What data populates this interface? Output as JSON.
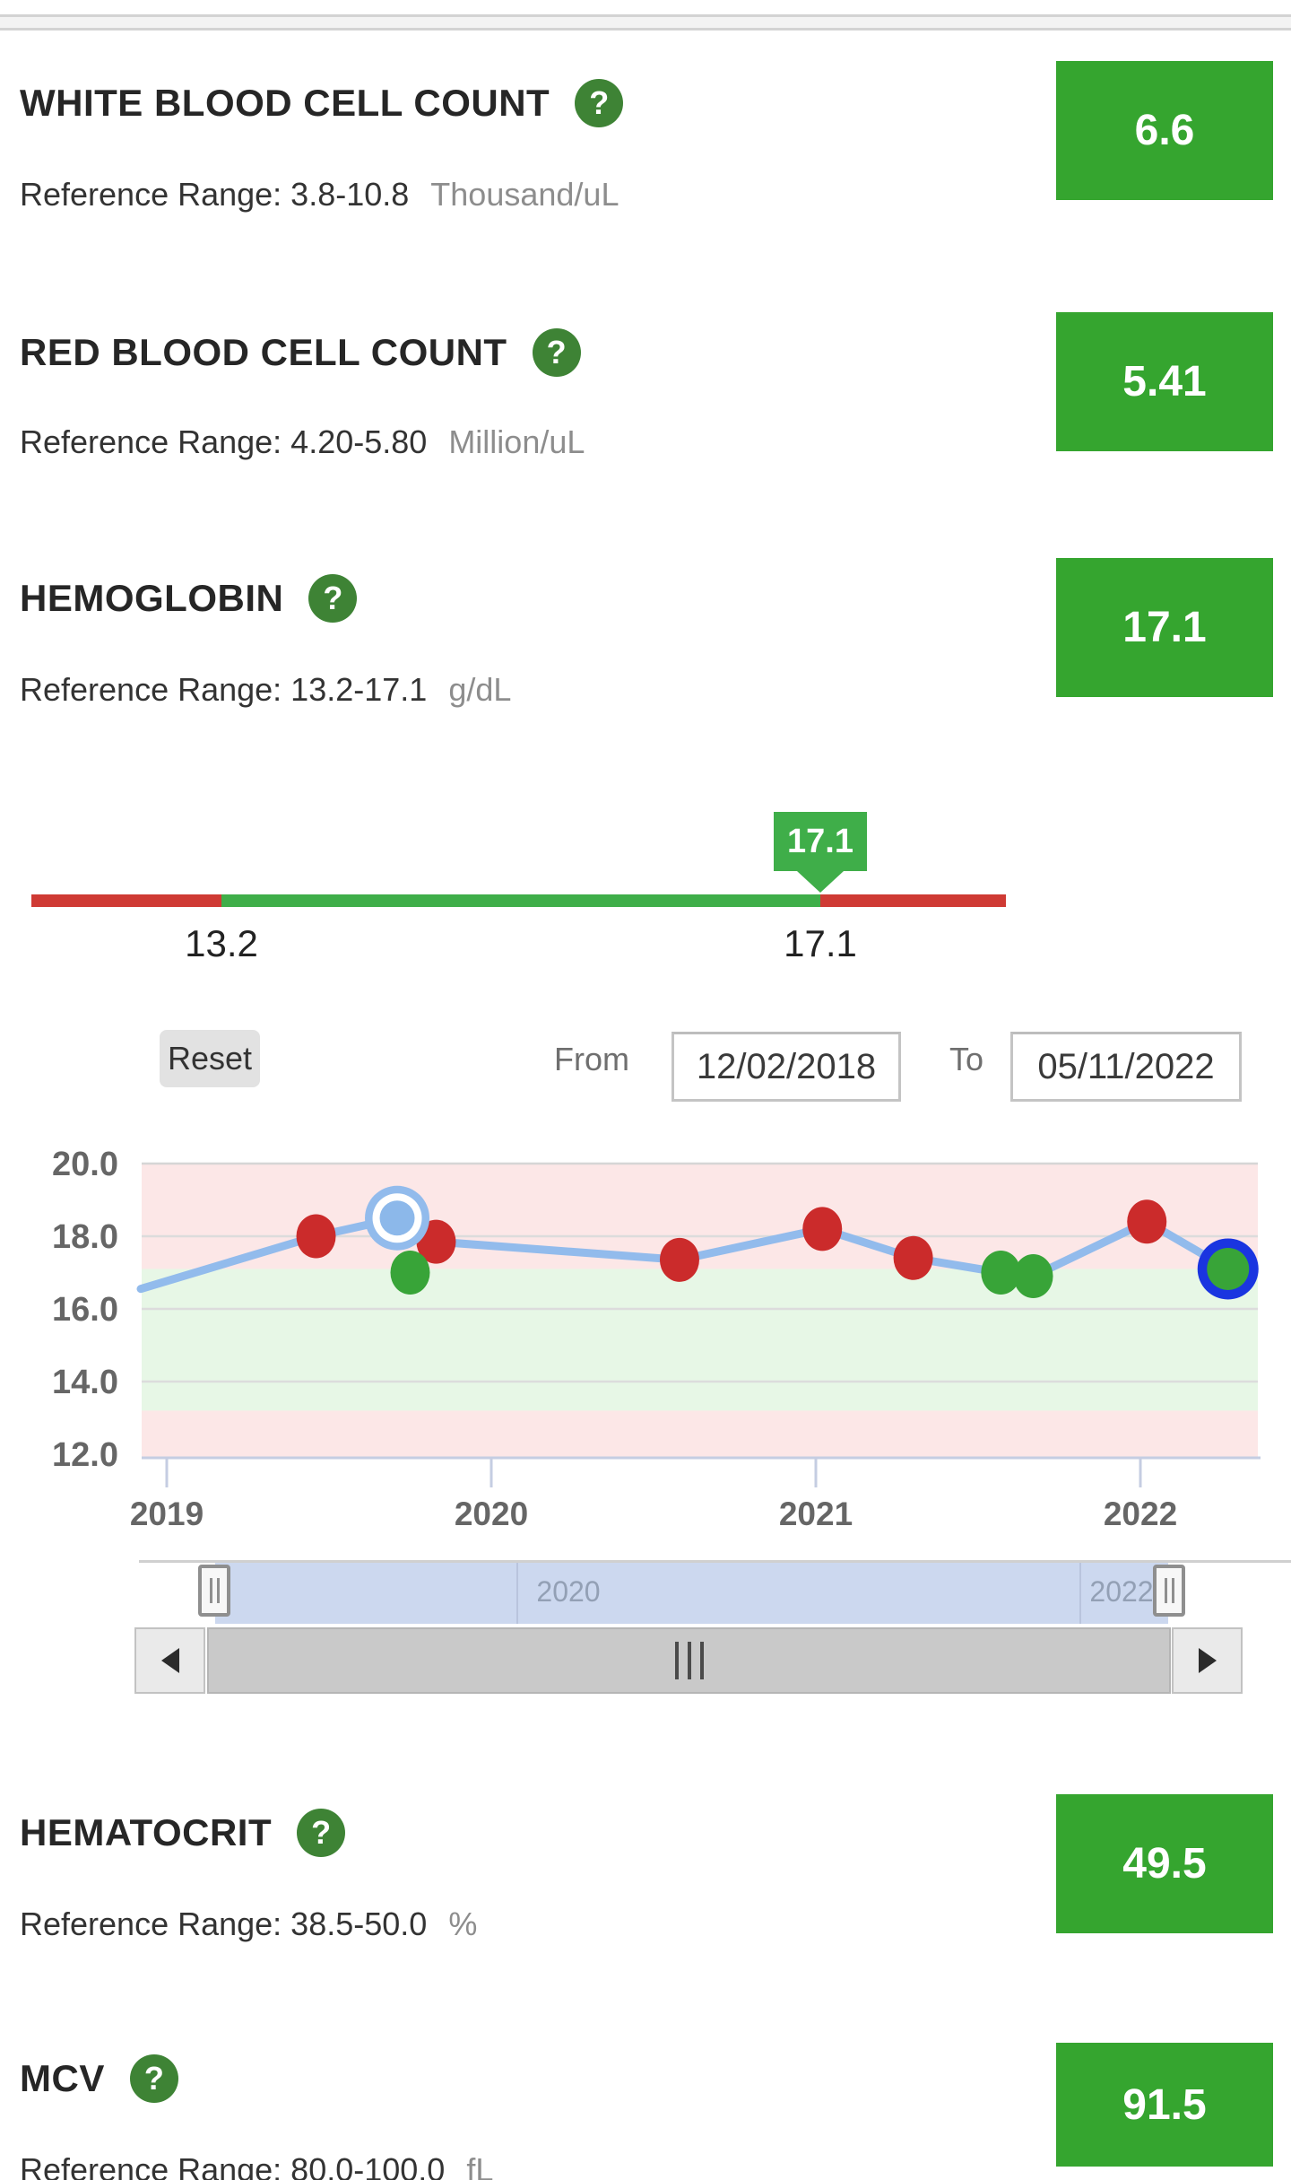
{
  "icons": {
    "help_glyph": "?",
    "scrollbar_left": "left-arrow",
    "scrollbar_right": "right-arrow"
  },
  "colors": {
    "result_value_bg": "#35a52f",
    "help_icon_bg": "#3e8335",
    "range_in": "#3fae49",
    "range_out": "#cf3a34",
    "flag_bg": "#3fae49"
  },
  "results": [
    {
      "title": "WHITE BLOOD CELL COUNT",
      "ref_label": "Reference Range: 3.8-10.8",
      "unit": "Thousand/uL",
      "value": "6.6"
    },
    {
      "title": "RED BLOOD CELL COUNT",
      "ref_label": "Reference Range: 4.20-5.80",
      "unit": "Million/uL",
      "value": "5.41"
    },
    {
      "title": "HEMOGLOBIN",
      "ref_label": "Reference Range: 13.2-17.1",
      "unit": "g/dL",
      "value": "17.1"
    },
    {
      "title": "HEMATOCRIT",
      "ref_label": "Reference Range: 38.5-50.0",
      "unit": "%",
      "value": "49.5"
    },
    {
      "title": "MCV",
      "ref_label": "Reference Range: 80.0-100.0",
      "unit": "fL",
      "value": "91.5"
    }
  ],
  "range_bar": {
    "min_label": "13.2",
    "max_label": "17.1",
    "marker_value": "17.1"
  },
  "toolbar": {
    "reset_label": "Reset",
    "from_label": "From",
    "from_value": "12/02/2018",
    "to_label": "To",
    "to_value": "05/11/2022"
  },
  "chart_data": {
    "type": "line",
    "title": "",
    "xlabel": "",
    "ylabel": "",
    "xlim": [
      2018.92,
      2022.37
    ],
    "ylim": [
      11.9,
      20.0
    ],
    "grid": true,
    "legend": false,
    "reference_band": {
      "low": 13.2,
      "high": 17.1
    },
    "y_ticks": [
      {
        "v": 20,
        "label": "20.0"
      },
      {
        "v": 18,
        "label": "18.0"
      },
      {
        "v": 16,
        "label": "16.0"
      },
      {
        "v": 14,
        "label": "14.0"
      },
      {
        "v": 12,
        "label": "12.0"
      }
    ],
    "x_ticks": [
      {
        "x": 2019,
        "label": "2019"
      },
      {
        "x": 2020,
        "label": "2020"
      },
      {
        "x": 2021,
        "label": "2021"
      },
      {
        "x": 2022,
        "label": "2022"
      }
    ],
    "series": [
      {
        "name": "HEMOGLOBIN",
        "unit": "g/dL",
        "points": [
          {
            "x": 2018.92,
            "y": 16.55,
            "marker": "none"
          },
          {
            "x": 2019.46,
            "y": 18.0,
            "status": "high"
          },
          {
            "x": 2019.71,
            "y": 18.5,
            "status": "high",
            "marker": "halo"
          },
          {
            "x": 2019.75,
            "y": 17.0,
            "status": "normal",
            "on_line": false
          },
          {
            "x": 2019.83,
            "y": 17.85,
            "status": "high"
          },
          {
            "x": 2020.58,
            "y": 17.35,
            "status": "high"
          },
          {
            "x": 2021.02,
            "y": 18.2,
            "status": "high"
          },
          {
            "x": 2021.3,
            "y": 17.4,
            "status": "high"
          },
          {
            "x": 2021.57,
            "y": 17.0,
            "status": "normal"
          },
          {
            "x": 2021.67,
            "y": 16.9,
            "status": "normal"
          },
          {
            "x": 2022.02,
            "y": 18.4,
            "status": "high"
          },
          {
            "x": 2022.27,
            "y": 17.1,
            "status": "normal",
            "marker": "selected-ring"
          }
        ]
      }
    ],
    "colors": {
      "line": "#92bbec",
      "high": "#cb2b2b",
      "normal": "#38a438",
      "band_in": "#e7f7e6",
      "band_out": "#fce7e7",
      "grid": "#dcdcdc",
      "plot_border": "#d6d6d6",
      "axis": "#c5cde2",
      "halo_ring": "#92bbec",
      "selected_ring": "#1a35e0"
    }
  },
  "navigator": {
    "labels": [
      "2020",
      "2022"
    ]
  }
}
